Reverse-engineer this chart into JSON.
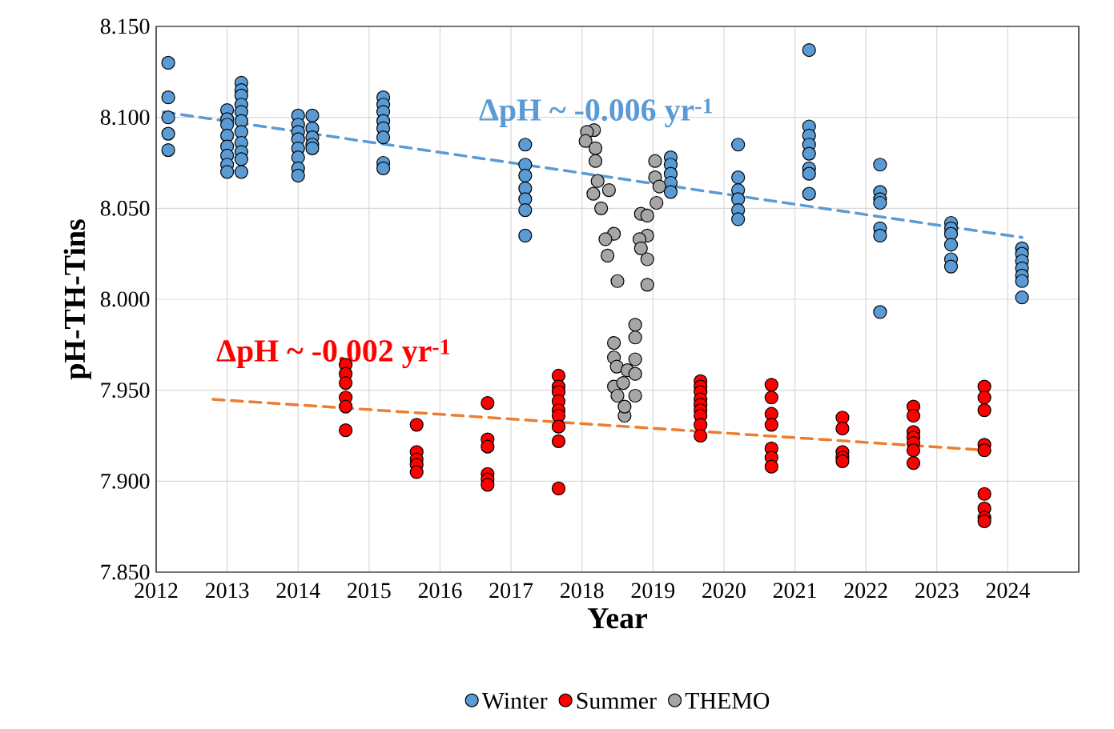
{
  "chart_data": {
    "type": "scatter",
    "xlabel": "Year",
    "ylabel": "pH-TH-Tins",
    "xlim": [
      2012,
      2025
    ],
    "xticks": [
      2012,
      2013,
      2014,
      2015,
      2016,
      2017,
      2018,
      2019,
      2020,
      2021,
      2022,
      2023,
      2024,
      {
        "value": 2025,
        "label": null
      }
    ],
    "ylim": [
      7.85,
      8.15
    ],
    "yticks": [
      {
        "value": 7.85,
        "label": "7.850"
      },
      {
        "value": 7.9,
        "label": "7.900"
      },
      {
        "value": 7.95,
        "label": "7.950"
      },
      {
        "value": 8.0,
        "label": "8.000"
      },
      {
        "value": 8.05,
        "label": "8.050"
      },
      {
        "value": 8.1,
        "label": "8.100"
      },
      {
        "value": 8.15,
        "label": "8.150"
      }
    ],
    "grid": true,
    "legend": "bottom",
    "marker": "circle",
    "series": [
      {
        "name": "Winter",
        "color": "#5b9bd5",
        "x": [
          2012.17,
          2012.17,
          2012.17,
          2012.17,
          2012.17,
          2013,
          2013,
          2013,
          2013,
          2013,
          2013,
          2013,
          2013,
          2013.2,
          2013.2,
          2013.2,
          2013.2,
          2013.2,
          2013.2,
          2013.2,
          2013.2,
          2013.2,
          2013.2,
          2013.2,
          2014,
          2014,
          2014,
          2014,
          2014,
          2014,
          2014,
          2014,
          2014.2,
          2014.2,
          2014.2,
          2014.2,
          2014.2,
          2015.2,
          2015.2,
          2015.2,
          2015.2,
          2015.2,
          2015.2,
          2015.2,
          2015.2,
          2017.2,
          2017.2,
          2017.2,
          2017.2,
          2017.2,
          2017.2,
          2017.2,
          2019.25,
          2019.25,
          2019.25,
          2019.25,
          2019.25,
          2020.2,
          2020.2,
          2020.2,
          2020.2,
          2020.2,
          2020.2,
          2021.2,
          2021.2,
          2021.2,
          2021.2,
          2021.2,
          2021.2,
          2021.2,
          2021.2,
          2022.2,
          2022.2,
          2022.2,
          2022.2,
          2022.2,
          2022.2,
          2022.2,
          2023.2,
          2023.2,
          2023.2,
          2023.2,
          2023.2,
          2023.2,
          2024.2,
          2024.2,
          2024.2,
          2024.2,
          2024.2,
          2024.2,
          2024.2
        ],
        "values": [
          8.13,
          8.111,
          8.1,
          8.091,
          8.082,
          8.104,
          8.099,
          8.096,
          8.09,
          8.084,
          8.079,
          8.074,
          8.07,
          8.119,
          8.115,
          8.112,
          8.107,
          8.103,
          8.098,
          8.092,
          8.086,
          8.081,
          8.077,
          8.07,
          8.101,
          8.096,
          8.092,
          8.088,
          8.083,
          8.078,
          8.072,
          8.068,
          8.101,
          8.094,
          8.089,
          8.085,
          8.083,
          8.111,
          8.107,
          8.103,
          8.098,
          8.094,
          8.089,
          8.075,
          8.072,
          8.085,
          8.074,
          8.068,
          8.061,
          8.055,
          8.049,
          8.035,
          8.078,
          8.074,
          8.069,
          8.064,
          8.059,
          8.085,
          8.067,
          8.06,
          8.055,
          8.049,
          8.044,
          8.137,
          8.095,
          8.09,
          8.085,
          8.08,
          8.072,
          8.069,
          8.058,
          8.074,
          8.059,
          8.055,
          8.053,
          8.039,
          8.035,
          7.993,
          8.042,
          8.039,
          8.036,
          8.03,
          8.022,
          8.018,
          8.028,
          8.025,
          8.021,
          8.017,
          8.013,
          8.01,
          8.001
        ]
      },
      {
        "name": "Summer",
        "color": "#ff0000",
        "x": [
          2014.67,
          2014.67,
          2014.67,
          2014.67,
          2014.67,
          2014.67,
          2015.67,
          2015.67,
          2015.67,
          2015.67,
          2015.67,
          2016.67,
          2016.67,
          2016.67,
          2016.67,
          2016.67,
          2016.67,
          2017.67,
          2017.67,
          2017.67,
          2017.67,
          2017.67,
          2017.67,
          2017.67,
          2017.67,
          2017.67,
          2019.67,
          2019.67,
          2019.67,
          2019.67,
          2019.67,
          2019.67,
          2019.67,
          2019.67,
          2019.67,
          2020.67,
          2020.67,
          2020.67,
          2020.67,
          2020.67,
          2020.67,
          2020.67,
          2021.67,
          2021.67,
          2021.67,
          2021.67,
          2021.67,
          2022.67,
          2022.67,
          2022.67,
          2022.67,
          2022.67,
          2022.67,
          2022.67,
          2023.67,
          2023.67,
          2023.67,
          2023.67,
          2023.67,
          2023.67,
          2023.67,
          2023.67,
          2023.67
        ],
        "values": [
          7.964,
          7.959,
          7.954,
          7.946,
          7.941,
          7.928,
          7.931,
          7.916,
          7.912,
          7.909,
          7.905,
          7.943,
          7.923,
          7.919,
          7.904,
          7.901,
          7.898,
          7.958,
          7.952,
          7.949,
          7.944,
          7.939,
          7.936,
          7.93,
          7.922,
          7.896,
          7.955,
          7.952,
          7.949,
          7.945,
          7.942,
          7.939,
          7.936,
          7.931,
          7.925,
          7.953,
          7.946,
          7.937,
          7.931,
          7.918,
          7.913,
          7.908,
          7.935,
          7.929,
          7.916,
          7.913,
          7.911,
          7.941,
          7.936,
          7.927,
          7.924,
          7.921,
          7.917,
          7.91,
          7.952,
          7.946,
          7.939,
          7.92,
          7.917,
          7.893,
          7.885,
          7.88,
          7.878
        ]
      },
      {
        "name": "THEMO",
        "color": "#a6a6a6",
        "x": [
          2018.17,
          2018.07,
          2018.05,
          2018.19,
          2018.19,
          2018.22,
          2018.16,
          2018.38,
          2018.27,
          2018.45,
          2018.33,
          2018.36,
          2018.5,
          2018.83,
          2018.92,
          2018.92,
          2018.81,
          2018.83,
          2018.92,
          2018.92,
          2019.03,
          2019.03,
          2019.09,
          2019.05,
          2018.75,
          2018.75,
          2018.45,
          2018.45,
          2018.75,
          2018.49,
          2018.64,
          2018.75,
          2018.45,
          2018.58,
          2018.5,
          2018.75,
          2018.6,
          2018.6
        ],
        "values": [
          8.093,
          8.092,
          8.087,
          8.083,
          8.076,
          8.065,
          8.058,
          8.06,
          8.05,
          8.036,
          8.033,
          8.024,
          8.01,
          8.047,
          8.046,
          8.035,
          8.033,
          8.028,
          8.022,
          8.008,
          8.076,
          8.067,
          8.062,
          8.053,
          7.986,
          7.979,
          7.976,
          7.968,
          7.967,
          7.963,
          7.961,
          7.959,
          7.952,
          7.954,
          7.947,
          7.947,
          7.936,
          7.941
        ]
      },
      {
        "type": "line",
        "line_style": "dashed",
        "marker": "none",
        "color": "#5b9bd5",
        "x": [
          2012.1,
          2024.2
        ],
        "values": [
          8.103,
          8.034
        ]
      },
      {
        "type": "line",
        "line_style": "dashed",
        "marker": "none",
        "color": "#ed7d31",
        "x": [
          2012.8,
          2023.7
        ],
        "values": [
          7.945,
          7.917
        ]
      }
    ],
    "annotations": [
      {
        "text": "ΔpH ~ -0.006 yr$^{-1}$",
        "x": 2018.2,
        "y": 8.068
      },
      {
        "text": "ΔpH ~ -0.002 yr$^{-1}$",
        "x": 2014.5,
        "y": 7.94
      }
    ]
  }
}
